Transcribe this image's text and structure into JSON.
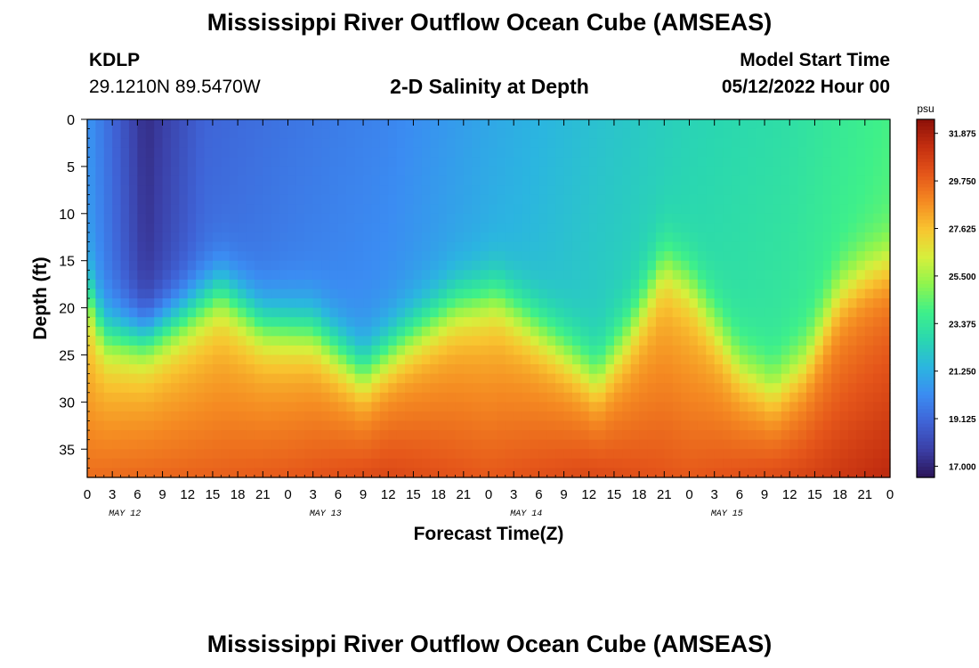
{
  "header": {
    "title": "Mississippi River Outflow Ocean Cube (AMSEAS)",
    "station": "KDLP",
    "coords": "29.1210N  89.5470W",
    "subtitle": "2-D Salinity at Depth",
    "model_start_label": "Model Start Time",
    "model_start_value": "05/12/2022 Hour 00"
  },
  "footer": {
    "title": "Mississippi River Outflow Ocean Cube (AMSEAS)"
  },
  "chart_data": {
    "type": "heatmap",
    "title": "2-D Salinity at Depth",
    "xlabel": "Forecast Time(Z)",
    "ylabel": "Depth (ft)",
    "x_tick_labels": [
      "0",
      "3",
      "6",
      "9",
      "12",
      "15",
      "18",
      "21",
      "0",
      "3",
      "6",
      "9",
      "12",
      "15",
      "18",
      "21",
      "0",
      "3",
      "6",
      "9",
      "12",
      "15",
      "18",
      "21",
      "0",
      "3",
      "6",
      "9",
      "12",
      "15",
      "18",
      "21",
      "0"
    ],
    "x_day_labels": [
      "MAY 12",
      "MAY 13",
      "MAY 14",
      "MAY 15"
    ],
    "x_range_hours": [
      0,
      96
    ],
    "y_ticks": [
      "0",
      "5",
      "10",
      "15",
      "20",
      "25",
      "30",
      "35"
    ],
    "y_range_ft": [
      0,
      38
    ],
    "colorbar": {
      "unit": "psu",
      "tick_labels": [
        "31.875",
        "29.750",
        "27.625",
        "25.500",
        "23.375",
        "21.250",
        "19.125",
        "17.000"
      ],
      "range": [
        16.5,
        32.5
      ],
      "colors": [
        "#2b1458",
        "#3b3fa6",
        "#3f63d6",
        "#3b8cf2",
        "#2bb5e0",
        "#2ad7b0",
        "#3ef08a",
        "#8ef54e",
        "#d7ef3c",
        "#f8c530",
        "#f58b22",
        "#e5561a",
        "#c42f10",
        "#8c1008"
      ]
    },
    "halocline_depth_ft": [
      {
        "hour": 0,
        "depth": 18
      },
      {
        "hour": 2,
        "depth": 22.5
      },
      {
        "hour": 7,
        "depth": 23
      },
      {
        "hour": 11,
        "depth": 21
      },
      {
        "hour": 16,
        "depth": 18
      },
      {
        "hour": 21,
        "depth": 21.5
      },
      {
        "hour": 27,
        "depth": 22
      },
      {
        "hour": 33,
        "depth": 26.5
      },
      {
        "hour": 38,
        "depth": 23
      },
      {
        "hour": 44,
        "depth": 19.5
      },
      {
        "hour": 49,
        "depth": 18.5
      },
      {
        "hour": 52,
        "depth": 20.5
      },
      {
        "hour": 57,
        "depth": 24
      },
      {
        "hour": 61,
        "depth": 27
      },
      {
        "hour": 65,
        "depth": 22
      },
      {
        "hour": 69,
        "depth": 15
      },
      {
        "hour": 72,
        "depth": 17
      },
      {
        "hour": 78,
        "depth": 25.5
      },
      {
        "hour": 82,
        "depth": 28
      },
      {
        "hour": 86,
        "depth": 25
      },
      {
        "hour": 90,
        "depth": 18
      },
      {
        "hour": 93,
        "depth": 16
      },
      {
        "hour": 96,
        "depth": 15
      }
    ],
    "surface_salinity_psu": [
      {
        "hour": 0,
        "value": 20.5
      },
      {
        "hour": 7,
        "value": 17.2
      },
      {
        "hour": 14,
        "value": 19.0
      },
      {
        "hour": 24,
        "value": 19.5
      },
      {
        "hour": 36,
        "value": 20.0
      },
      {
        "hour": 48,
        "value": 21.0
      },
      {
        "hour": 60,
        "value": 21.8
      },
      {
        "hour": 72,
        "value": 22.5
      },
      {
        "hour": 84,
        "value": 23.0
      },
      {
        "hour": 96,
        "value": 24.0
      }
    ],
    "bottom_salinity_psu": [
      {
        "hour": 0,
        "value": 29.5
      },
      {
        "hour": 24,
        "value": 30.0
      },
      {
        "hour": 36,
        "value": 30.5
      },
      {
        "hour": 48,
        "value": 30.0
      },
      {
        "hour": 60,
        "value": 30.5
      },
      {
        "hour": 72,
        "value": 30.0
      },
      {
        "hour": 84,
        "value": 30.5
      },
      {
        "hour": 96,
        "value": 31.5
      }
    ]
  }
}
